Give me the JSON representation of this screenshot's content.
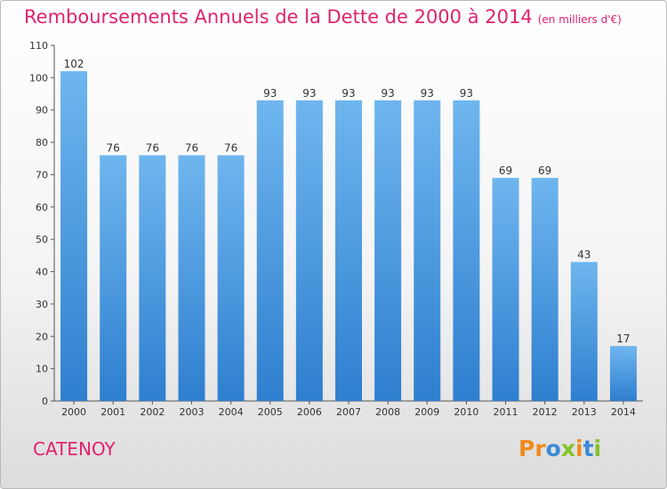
{
  "title": "Remboursements Annuels de la Dette de 2000 à 2014",
  "subtitle": "(en milliers d'€)",
  "commune": "CATENOY",
  "logo_text": "Proxiti",
  "colors": {
    "title": "#e0226e",
    "bar_top": "#6fb6ef",
    "bar_bottom": "#2e7fcf"
  },
  "chart_data": {
    "type": "bar",
    "title": "Remboursements Annuels de la Dette de 2000 à 2014",
    "subtitle": "(en milliers d'€)",
    "categories": [
      "2000",
      "2001",
      "2002",
      "2003",
      "2004",
      "2005",
      "2006",
      "2007",
      "2008",
      "2009",
      "2010",
      "2011",
      "2012",
      "2013",
      "2014"
    ],
    "values": [
      102,
      76,
      76,
      76,
      76,
      93,
      93,
      93,
      93,
      93,
      93,
      69,
      69,
      43,
      17
    ],
    "ylim": [
      0,
      110
    ],
    "yticks": [
      0,
      10,
      20,
      30,
      40,
      50,
      60,
      70,
      80,
      90,
      100,
      110
    ],
    "grid": false,
    "legend": "none"
  }
}
